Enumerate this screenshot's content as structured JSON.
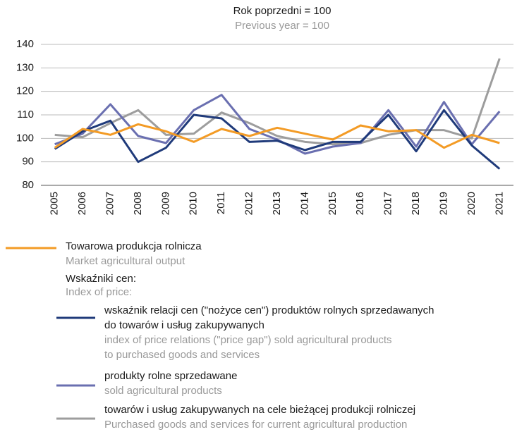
{
  "chart_data": {
    "type": "line",
    "title": "Rok poprzedni = 100",
    "subtitle": "Previous year = 100",
    "categories": [
      "2005",
      "2006",
      "2007",
      "2008",
      "2009",
      "2010",
      "2011",
      "2012",
      "2013",
      "2014",
      "2015",
      "2016",
      "2017",
      "2018",
      "2019",
      "2020",
      "2021"
    ],
    "ylim": [
      80,
      140
    ],
    "yticks": [
      80,
      90,
      100,
      110,
      120,
      130,
      140
    ],
    "grid": true,
    "legend_group_title": "Wskaźniki cen:",
    "legend_group_title_en": "Index of price:",
    "series": [
      {
        "name": "Towarowa produkcja rolnicza",
        "name_en": "Market agricultural output",
        "color": "#f39b25",
        "values": [
          96,
          104,
          101.5,
          106,
          103,
          98.5,
          104,
          101,
          104.5,
          102,
          99.5,
          105.5,
          103,
          103.5,
          96,
          101.5,
          98
        ]
      },
      {
        "name": "wskaźnik relacji cen (\"nożyce cen\") produktów rolnych sprzedawanych\ndo towarów i usług zakupywanych",
        "name_en": "index of price relations (\"price gap\") sold agricultural products\nto purchased goods and services",
        "color": "#1f3a7a",
        "values": [
          95.5,
          103,
          107.5,
          90,
          96,
          110,
          108.5,
          98.5,
          99,
          95,
          98.5,
          98.5,
          110,
          94.5,
          112,
          97,
          87
        ]
      },
      {
        "name": "produkty rolne sprzedawane",
        "name_en": "sold agricultural products",
        "color": "#6a6fb0",
        "values": [
          97.5,
          102,
          114.5,
          101,
          98,
          112,
          118.5,
          104,
          99.5,
          93.5,
          96.5,
          98,
          112,
          96.5,
          115.5,
          97.5,
          111.5
        ]
      },
      {
        "name": "towarów i usług zakupywanych na cele bieżącej produkcji rolniczej",
        "name_en": "Purchased goods and services for current agricultural production",
        "color": "#9d9d9d",
        "values": [
          101.5,
          100.5,
          106.5,
          112,
          101.5,
          102,
          111,
          106.5,
          101,
          98.5,
          97.5,
          98,
          101.5,
          103.5,
          103.5,
          100,
          134
        ]
      }
    ]
  }
}
